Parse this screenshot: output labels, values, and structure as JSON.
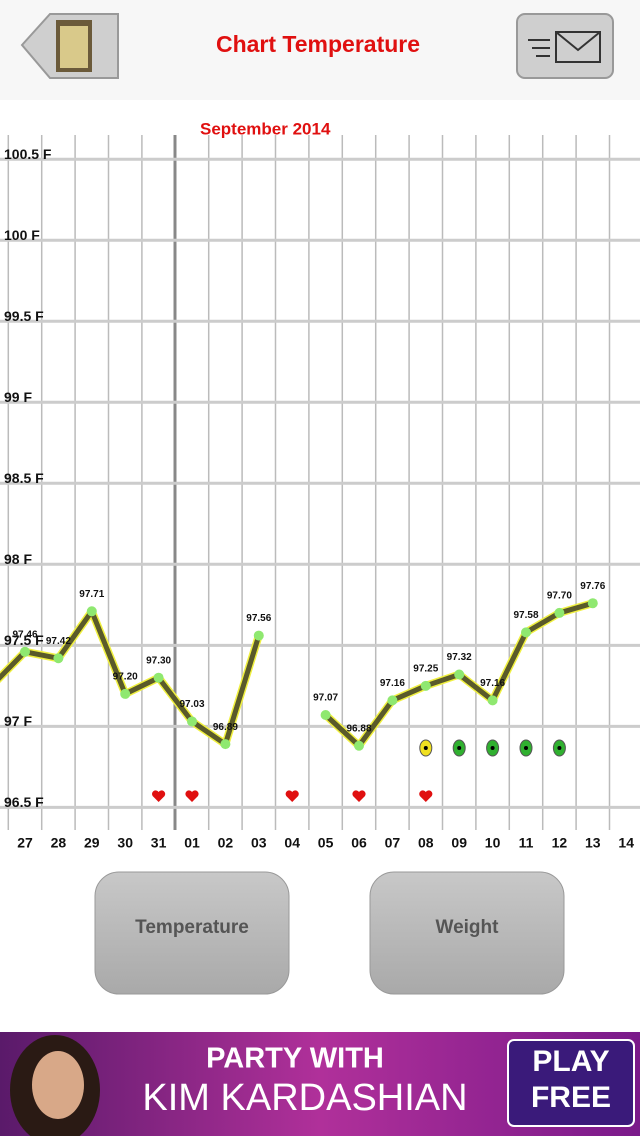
{
  "header": {
    "title": "Chart Temperature"
  },
  "chart_data": {
    "type": "line",
    "subtitle": "September 2014",
    "categories": [
      null,
      "27",
      "28",
      "29",
      "30",
      "31",
      "01",
      "02",
      "03",
      "04",
      "05",
      "06",
      "07",
      "08",
      "09",
      "10",
      "11",
      "12",
      "13",
      "14"
    ],
    "series": [
      {
        "name": "Temperature",
        "color": "#5a5a2a",
        "values": [
          97.25,
          97.46,
          97.42,
          97.71,
          97.2,
          97.3,
          97.03,
          96.89,
          97.56,
          null,
          97.07,
          96.88,
          97.16,
          97.25,
          97.32,
          97.16,
          97.58,
          97.7,
          97.76,
          null
        ],
        "value_labels": [
          null,
          "97.46",
          "97.42",
          "97.71",
          "97.20",
          "97.30",
          "97.03",
          "96.89",
          "97.56",
          null,
          "97.07",
          "96.88",
          "97.16",
          "97.25",
          "97.32",
          "97.16",
          "97.58",
          "97.70",
          "97.76",
          null
        ]
      }
    ],
    "ylim": [
      96.36,
      100.65
    ],
    "yticks": [
      {
        "value": 96.5,
        "label": "96.5 F"
      },
      {
        "value": 97,
        "label": "97 F"
      },
      {
        "value": 97.5,
        "label": "97.5 F"
      },
      {
        "value": 98,
        "label": "98 F"
      },
      {
        "value": 98.5,
        "label": "98.5 F"
      },
      {
        "value": 99,
        "label": "99 F"
      },
      {
        "value": 99.5,
        "label": "99.5 F"
      },
      {
        "value": 100,
        "label": "100 F"
      },
      {
        "value": 100.5,
        "label": "100.5 F"
      }
    ],
    "grid": true
  },
  "buttons": [
    "Temperature",
    "Weight"
  ],
  "ad": {
    "line1": "PARTY WITH",
    "line2": "KIM KARDASHIAN",
    "cta1": "PLAY",
    "cta2": "FREE"
  }
}
